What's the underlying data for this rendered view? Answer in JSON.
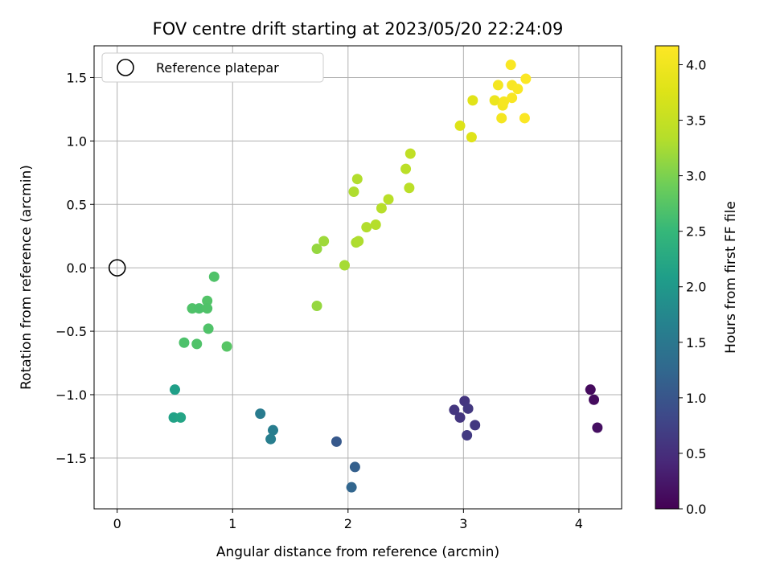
{
  "chart_data": {
    "type": "scatter",
    "title": "FOV centre drift starting at 2023/05/20 22:24:09",
    "xlabel": "Angular distance from reference (arcmin)",
    "ylabel": "Rotation from reference (arcmin)",
    "xlim": [
      -0.2,
      4.37
    ],
    "ylim": [
      -1.9,
      1.75
    ],
    "xticks": [
      0,
      1,
      2,
      3,
      4
    ],
    "yticks": [
      -1.5,
      -1.0,
      -0.5,
      0.0,
      0.5,
      1.0,
      1.5
    ],
    "grid": true,
    "legend": {
      "position": "top-left",
      "entries": [
        "Reference platepar"
      ]
    },
    "reference_point": {
      "x": 0,
      "y": 0,
      "name": "Reference platepar"
    },
    "colorbar": {
      "label": "Hours from first FF file",
      "colormap": "viridis",
      "range": [
        0,
        4.17
      ],
      "ticks": [
        0.0,
        0.5,
        1.0,
        1.5,
        2.0,
        2.5,
        3.0,
        3.5,
        4.0
      ]
    },
    "points": [
      {
        "x": 4.1,
        "y": -0.96,
        "c": 0.1
      },
      {
        "x": 4.13,
        "y": -1.04,
        "c": 0.12
      },
      {
        "x": 4.16,
        "y": -1.26,
        "c": 0.15
      },
      {
        "x": 3.01,
        "y": -1.05,
        "c": 0.58
      },
      {
        "x": 2.92,
        "y": -1.12,
        "c": 0.6
      },
      {
        "x": 3.04,
        "y": -1.11,
        "c": 0.62
      },
      {
        "x": 2.97,
        "y": -1.18,
        "c": 0.6
      },
      {
        "x": 3.1,
        "y": -1.24,
        "c": 0.62
      },
      {
        "x": 3.03,
        "y": -1.32,
        "c": 0.65
      },
      {
        "x": 1.9,
        "y": -1.37,
        "c": 1.05
      },
      {
        "x": 2.06,
        "y": -1.57,
        "c": 1.15
      },
      {
        "x": 2.03,
        "y": -1.73,
        "c": 1.22
      },
      {
        "x": 1.24,
        "y": -1.15,
        "c": 1.55
      },
      {
        "x": 1.35,
        "y": -1.28,
        "c": 1.58
      },
      {
        "x": 1.33,
        "y": -1.35,
        "c": 1.6
      },
      {
        "x": 0.5,
        "y": -0.96,
        "c": 2.1
      },
      {
        "x": 0.49,
        "y": -1.18,
        "c": 2.15
      },
      {
        "x": 0.55,
        "y": -1.18,
        "c": 2.18
      },
      {
        "x": 0.84,
        "y": -0.07,
        "c": 2.7
      },
      {
        "x": 0.65,
        "y": -0.32,
        "c": 2.7
      },
      {
        "x": 0.71,
        "y": -0.32,
        "c": 2.68
      },
      {
        "x": 0.78,
        "y": -0.26,
        "c": 2.72
      },
      {
        "x": 0.78,
        "y": -0.32,
        "c": 2.7
      },
      {
        "x": 0.79,
        "y": -0.48,
        "c": 2.7
      },
      {
        "x": 0.58,
        "y": -0.59,
        "c": 2.68
      },
      {
        "x": 0.69,
        "y": -0.6,
        "c": 2.7
      },
      {
        "x": 0.95,
        "y": -0.62,
        "c": 2.75
      },
      {
        "x": 1.73,
        "y": 0.15,
        "c": 3.15
      },
      {
        "x": 1.79,
        "y": 0.21,
        "c": 3.2
      },
      {
        "x": 1.73,
        "y": -0.3,
        "c": 3.15
      },
      {
        "x": 1.97,
        "y": 0.02,
        "c": 3.25
      },
      {
        "x": 2.07,
        "y": 0.2,
        "c": 3.28
      },
      {
        "x": 2.09,
        "y": 0.21,
        "c": 3.3
      },
      {
        "x": 2.16,
        "y": 0.32,
        "c": 3.32
      },
      {
        "x": 2.24,
        "y": 0.34,
        "c": 3.34
      },
      {
        "x": 2.29,
        "y": 0.47,
        "c": 3.36
      },
      {
        "x": 2.35,
        "y": 0.54,
        "c": 3.38
      },
      {
        "x": 2.05,
        "y": 0.6,
        "c": 3.3
      },
      {
        "x": 2.08,
        "y": 0.7,
        "c": 3.32
      },
      {
        "x": 2.5,
        "y": 0.78,
        "c": 3.4
      },
      {
        "x": 2.54,
        "y": 0.9,
        "c": 3.45
      },
      {
        "x": 2.53,
        "y": 0.63,
        "c": 3.4
      },
      {
        "x": 2.97,
        "y": 1.12,
        "c": 3.75
      },
      {
        "x": 3.07,
        "y": 1.03,
        "c": 3.78
      },
      {
        "x": 3.08,
        "y": 1.32,
        "c": 3.8
      },
      {
        "x": 3.27,
        "y": 1.32,
        "c": 3.95
      },
      {
        "x": 3.3,
        "y": 1.44,
        "c": 4.05
      },
      {
        "x": 3.34,
        "y": 1.28,
        "c": 4.05
      },
      {
        "x": 3.35,
        "y": 1.31,
        "c": 4.08
      },
      {
        "x": 3.33,
        "y": 1.18,
        "c": 4.05
      },
      {
        "x": 3.41,
        "y": 1.6,
        "c": 4.12
      },
      {
        "x": 3.42,
        "y": 1.44,
        "c": 4.1
      },
      {
        "x": 3.42,
        "y": 1.34,
        "c": 4.1
      },
      {
        "x": 3.47,
        "y": 1.41,
        "c": 4.12
      },
      {
        "x": 3.54,
        "y": 1.49,
        "c": 4.15
      },
      {
        "x": 3.53,
        "y": 1.18,
        "c": 4.15
      }
    ]
  }
}
